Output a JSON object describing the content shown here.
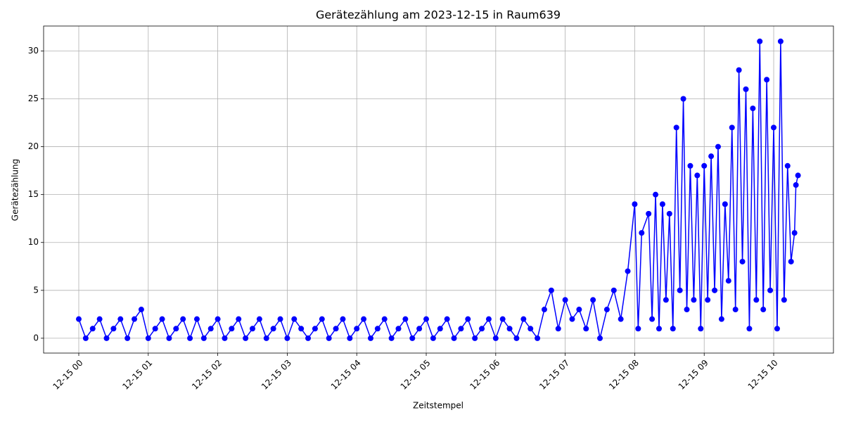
{
  "chart_data": {
    "type": "line",
    "title": "Gerätezählung am 2023-12-15 in Raum639",
    "x_label": "Zeitstempel",
    "y_label": "Gerätezählung",
    "x": [
      0.0,
      0.1,
      0.2,
      0.3,
      0.4,
      0.5,
      0.6,
      0.7,
      0.8,
      0.9,
      1.0,
      1.1,
      1.2,
      1.3,
      1.4,
      1.5,
      1.6,
      1.7,
      1.8,
      1.9,
      2.0,
      2.1,
      2.2,
      2.3,
      2.4,
      2.5,
      2.6,
      2.7,
      2.8,
      2.9,
      3.0,
      3.1,
      3.2,
      3.3,
      3.4,
      3.5,
      3.6,
      3.7,
      3.8,
      3.9,
      4.0,
      4.1,
      4.2,
      4.3,
      4.4,
      4.5,
      4.6,
      4.7,
      4.8,
      4.9,
      5.0,
      5.1,
      5.2,
      5.3,
      5.4,
      5.5,
      5.6,
      5.7,
      5.8,
      5.9,
      6.0,
      6.1,
      6.2,
      6.3,
      6.4,
      6.5,
      6.6,
      6.7,
      6.8,
      6.9,
      7.0,
      7.1,
      7.2,
      7.3,
      7.4,
      7.5,
      7.6,
      7.7,
      7.8,
      7.9,
      8.0,
      8.05,
      8.1,
      8.2,
      8.25,
      8.3,
      8.35,
      8.4,
      8.45,
      8.5,
      8.55,
      8.6,
      8.65,
      8.7,
      8.75,
      8.8,
      8.85,
      8.9,
      8.95,
      9.0,
      9.05,
      9.1,
      9.15,
      9.2,
      9.25,
      9.3,
      9.35,
      9.4,
      9.45,
      9.5,
      9.55,
      9.6,
      9.65,
      9.7,
      9.75,
      9.8,
      9.85,
      9.9,
      9.95,
      10.0,
      10.05,
      10.1,
      10.15,
      10.2,
      10.25,
      10.3,
      10.32,
      10.35
    ],
    "series": [
      {
        "name": "Gerätezählung",
        "color": "#0000ff",
        "values": [
          2,
          0,
          1,
          2,
          0,
          1,
          2,
          0,
          2,
          3,
          0,
          1,
          2,
          0,
          1,
          2,
          0,
          2,
          0,
          1,
          2,
          0,
          1,
          2,
          0,
          1,
          2,
          0,
          1,
          2,
          0,
          2,
          1,
          0,
          1,
          2,
          0,
          1,
          2,
          0,
          1,
          2,
          0,
          1,
          2,
          0,
          1,
          2,
          0,
          1,
          2,
          0,
          1,
          2,
          0,
          1,
          2,
          0,
          1,
          2,
          0,
          2,
          1,
          0,
          2,
          1,
          0,
          3,
          5,
          1,
          4,
          2,
          3,
          1,
          4,
          0,
          3,
          5,
          2,
          7,
          14,
          1,
          11,
          13,
          2,
          15,
          1,
          14,
          4,
          13,
          1,
          22,
          5,
          25,
          3,
          18,
          4,
          17,
          1,
          18,
          4,
          19,
          5,
          20,
          2,
          14,
          6,
          22,
          3,
          28,
          8,
          26,
          1,
          24,
          4,
          31,
          3,
          27,
          5,
          22,
          1,
          31,
          4,
          18,
          8,
          11,
          16,
          17
        ]
      }
    ],
    "xlim": [
      -0.506,
      10.86
    ],
    "xticks": [
      {
        "value": 0,
        "label": "12-15 00"
      },
      {
        "value": 1,
        "label": "12-15 01"
      },
      {
        "value": 2,
        "label": "12-15 02"
      },
      {
        "value": 3,
        "label": "12-15 03"
      },
      {
        "value": 4,
        "label": "12-15 04"
      },
      {
        "value": 5,
        "label": "12-15 05"
      },
      {
        "value": 6,
        "label": "12-15 06"
      },
      {
        "value": 7,
        "label": "12-15 07"
      },
      {
        "value": 8,
        "label": "12-15 08"
      },
      {
        "value": 9,
        "label": "12-15 09"
      },
      {
        "value": 10,
        "label": "12-15 10"
      }
    ],
    "ylim": [
      -1.55,
      32.6
    ],
    "yticks": [
      0,
      5,
      10,
      15,
      20,
      25,
      30
    ],
    "grid": true
  }
}
